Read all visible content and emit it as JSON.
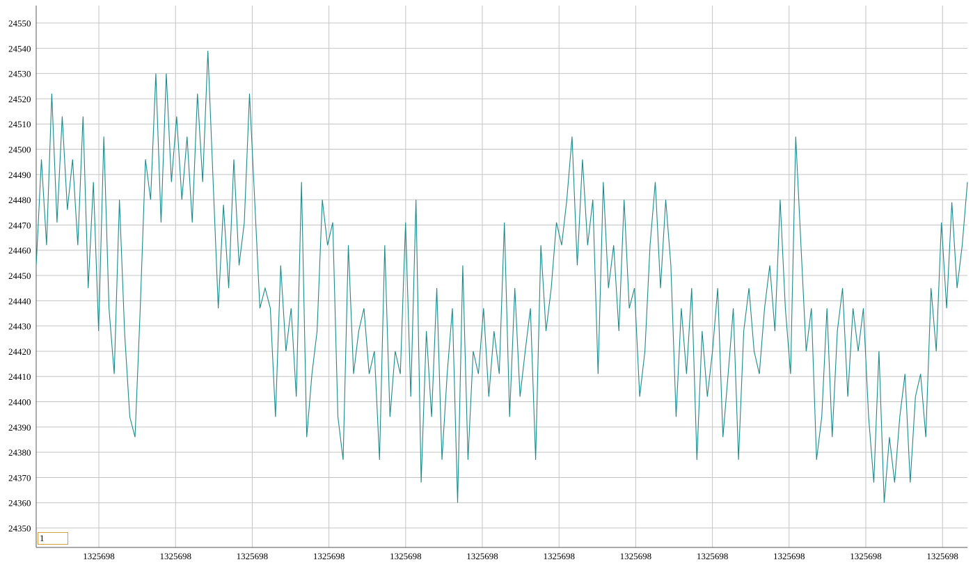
{
  "chart_data": {
    "type": "line",
    "color": "#1a8a8a",
    "values": [
      24454,
      24496,
      24462,
      24522,
      24471,
      24513,
      24476,
      24496,
      24462,
      24513,
      24445,
      24487,
      24428,
      24505,
      24437,
      24411,
      24480,
      24427,
      24394,
      24386,
      24437,
      24496,
      24480,
      24530,
      24471,
      24530,
      24487,
      24513,
      24480,
      24505,
      24471,
      24522,
      24487,
      24539,
      24488,
      24437,
      24478,
      24445,
      24496,
      24454,
      24471,
      24522,
      24480,
      24437,
      24445,
      24437,
      24394,
      24454,
      24420,
      24437,
      24402,
      24487,
      24386,
      24411,
      24428,
      24480,
      24462,
      24471,
      24394,
      24377,
      24462,
      24411,
      24428,
      24437,
      24411,
      24420,
      24377,
      24462,
      24394,
      24420,
      24411,
      24471,
      24402,
      24480,
      24368,
      24428,
      24394,
      24445,
      24377,
      24411,
      24437,
      24360,
      24454,
      24377,
      24420,
      24411,
      24437,
      24402,
      24428,
      24411,
      24471,
      24394,
      24445,
      24402,
      24420,
      24437,
      24377,
      24462,
      24428,
      24445,
      24471,
      24462,
      24480,
      24505,
      24454,
      24496,
      24462,
      24480,
      24411,
      24487,
      24445,
      24462,
      24428,
      24480,
      24437,
      24445,
      24402,
      24420,
      24462,
      24487,
      24445,
      24480,
      24454,
      24394,
      24437,
      24411,
      24445,
      24377,
      24428,
      24402,
      24420,
      24445,
      24386,
      24411,
      24437,
      24377,
      24428,
      24445,
      24420,
      24411,
      24437,
      24454,
      24428,
      24480,
      24437,
      24411,
      24505,
      24462,
      24420,
      24437,
      24377,
      24394,
      24437,
      24386,
      24428,
      24445,
      24402,
      24437,
      24420,
      24437,
      24394,
      24368,
      24420,
      24360,
      24386,
      24368,
      24394,
      24411,
      24368,
      24402,
      24411,
      24386,
      24445,
      24420,
      24471,
      24437,
      24479,
      24445,
      24462,
      24487
    ],
    "ylim": [
      24342.3,
      24556.9
    ],
    "yticks": [
      24350,
      24360,
      24370,
      24380,
      24390,
      24400,
      24410,
      24420,
      24430,
      24440,
      24450,
      24460,
      24470,
      24480,
      24490,
      24500,
      24510,
      24520,
      24530,
      24540,
      24550
    ],
    "xlim": [
      0.183,
      12.325
    ],
    "xticks": [
      {
        "value": 1,
        "label": "1325698"
      },
      {
        "value": 2,
        "label": "1325698"
      },
      {
        "value": 3,
        "label": "1325698"
      },
      {
        "value": 4,
        "label": "1325698"
      },
      {
        "value": 5,
        "label": "1325698"
      },
      {
        "value": 6,
        "label": "1325698"
      },
      {
        "value": 7,
        "label": "1325698"
      },
      {
        "value": 8,
        "label": "1325698"
      },
      {
        "value": 9,
        "label": "1325698"
      },
      {
        "value": 10,
        "label": "1325698"
      },
      {
        "value": 11,
        "label": "1325698"
      },
      {
        "value": 12,
        "label": "1325698"
      }
    ],
    "grid": true
  },
  "input": {
    "value": "1"
  }
}
